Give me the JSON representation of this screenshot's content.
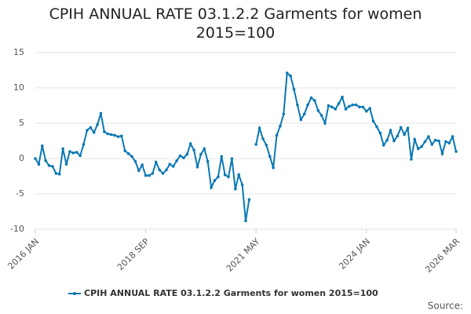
{
  "chart_data": {
    "type": "line",
    "title": "CPIH ANNUAL RATE 03.1.2.2 Garments for women 2015=100",
    "source_label": "Source:",
    "categories": [
      "2016 JAN",
      null,
      null,
      null,
      null,
      null,
      null,
      null,
      null,
      null,
      null,
      null,
      null,
      null,
      null,
      null,
      null,
      null,
      null,
      null,
      null,
      null,
      null,
      null,
      null,
      null,
      null,
      null,
      null,
      null,
      null,
      null,
      "2018 SEP",
      null,
      null,
      null,
      null,
      null,
      null,
      null,
      null,
      null,
      null,
      null,
      null,
      null,
      null,
      null,
      null,
      null,
      null,
      null,
      null,
      null,
      null,
      null,
      null,
      null,
      null,
      null,
      null,
      null,
      null,
      null,
      "2021 MAY",
      null,
      null,
      null,
      null,
      null,
      null,
      null,
      null,
      null,
      null,
      null,
      null,
      null,
      null,
      null,
      null,
      null,
      null,
      null,
      null,
      null,
      null,
      null,
      null,
      null,
      null,
      null,
      null,
      null,
      null,
      null,
      "2024 JAN",
      null,
      null,
      null,
      null,
      null,
      null,
      null,
      null,
      null,
      null,
      null,
      null,
      null,
      null,
      null,
      null,
      null,
      null,
      null,
      null,
      null,
      null,
      null,
      null,
      null,
      "2026 MAR"
    ],
    "series": [
      {
        "name": "CPIH ANNUAL RATE 03.1.2.2 Garments for women 2015=100",
        "color": "#0a78b4",
        "values": [
          0,
          -0.8,
          1.8,
          -0.3,
          -1,
          -1.1,
          -2.1,
          -2.2,
          1.4,
          -0.8,
          1,
          0.8,
          0.9,
          0.4,
          2,
          4,
          4.4,
          3.7,
          4.8,
          6.4,
          3.8,
          3.5,
          3.4,
          3.3,
          3.1,
          3.2,
          1.1,
          0.7,
          0.3,
          -0.4,
          -1.7,
          -0.9,
          -2.4,
          -2.4,
          -2.1,
          -0.5,
          -1.6,
          -2.1,
          -1.6,
          -0.8,
          -1.1,
          -0.3,
          0.4,
          0.1,
          0.6,
          2.1,
          1.2,
          -1.2,
          0.6,
          1.4,
          -0.4,
          -4.1,
          -3.1,
          -2.6,
          0.3,
          -2.3,
          -2.6,
          0,
          -4.3,
          -2.3,
          -3.7,
          -8.8,
          -5.8,
          null,
          2,
          4.3,
          2.8,
          1.9,
          0.3,
          -1.3,
          3.3,
          4.6,
          6.3,
          12.1,
          11.7,
          9.8,
          7.6,
          5.5,
          6.3,
          7.6,
          8.6,
          8.2,
          6.8,
          6.1,
          5,
          7.5,
          7.3,
          7,
          7.8,
          8.7,
          7,
          7.4,
          7.6,
          7.6,
          7.3,
          7.3,
          6.7,
          7.1,
          5.3,
          4.5,
          3.6,
          1.9,
          2.6,
          4,
          2.5,
          3.2,
          4.4,
          3.4,
          4.3,
          -0.1,
          2.7,
          1.4,
          1.7,
          2.4,
          3.1,
          2,
          2.6,
          2.5,
          0.7,
          2.4,
          2.2,
          3.1,
          1
        ]
      }
    ],
    "ylim": [
      -10,
      15
    ],
    "yticks": [
      15,
      10,
      5,
      0,
      -5,
      -10
    ],
    "grid": true
  }
}
